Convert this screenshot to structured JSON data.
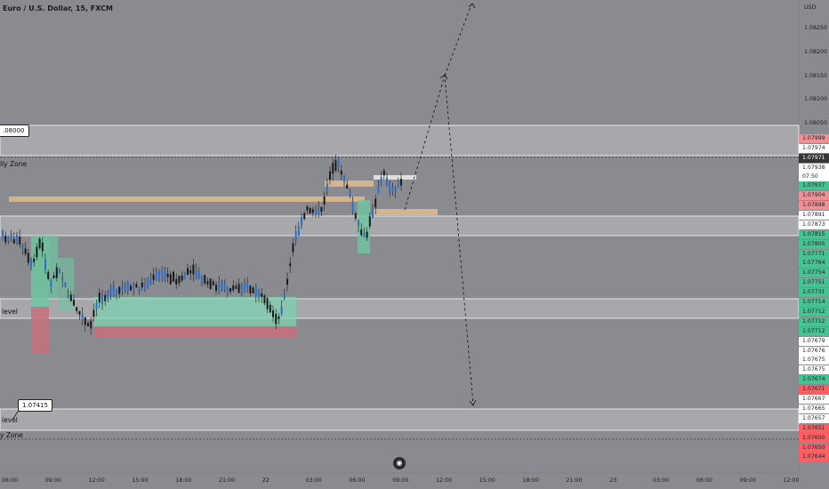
{
  "header": {
    "symbol_title": "Euro / U.S. Dollar, 15, FXCM"
  },
  "price_axis": {
    "currency": "USD",
    "ticks": [
      "1.08250",
      "1.08200",
      "1.08150",
      "1.08100",
      "1.08050"
    ],
    "tags": [
      {
        "text": "1.07999",
        "bg": "#f08f96",
        "fg": "#222"
      },
      {
        "text": "1.07974",
        "bg": "#ffffff",
        "fg": "#222"
      },
      {
        "text": "1.07971",
        "bg": "#363636",
        "fg": "#fff"
      },
      {
        "text": "1.07938",
        "bg": "#ffffff",
        "fg": "#222",
        "sub": "07:50"
      },
      {
        "text": "1.07937",
        "bg": "#47c293",
        "fg": "#222"
      },
      {
        "text": "1.07904",
        "bg": "#f08f96",
        "fg": "#222"
      },
      {
        "text": "1.07898",
        "bg": "#f08f96",
        "fg": "#222"
      },
      {
        "text": "1.07891",
        "bg": "#ffffff",
        "fg": "#222"
      },
      {
        "text": "1.07873",
        "bg": "#ffffff",
        "fg": "#222"
      },
      {
        "text": "1.07815",
        "bg": "#47c293",
        "fg": "#222"
      },
      {
        "text": "1.07805",
        "bg": "#47c293",
        "fg": "#222"
      },
      {
        "text": "1.07771",
        "bg": "#47c293",
        "fg": "#222"
      },
      {
        "text": "1.07764",
        "bg": "#47c293",
        "fg": "#222"
      },
      {
        "text": "1.07754",
        "bg": "#47c293",
        "fg": "#222"
      },
      {
        "text": "1.07751",
        "bg": "#47c293",
        "fg": "#222"
      },
      {
        "text": "1.07731",
        "bg": "#47c293",
        "fg": "#222"
      },
      {
        "text": "1.07714",
        "bg": "#47c293",
        "fg": "#222"
      },
      {
        "text": "1.07712",
        "bg": "#47c293",
        "fg": "#222"
      },
      {
        "text": "1.07712",
        "bg": "#47c293",
        "fg": "#222"
      },
      {
        "text": "1.07712",
        "bg": "#47c293",
        "fg": "#222"
      },
      {
        "text": "1.07679",
        "bg": "#ffffff",
        "fg": "#222"
      },
      {
        "text": "1.07676",
        "bg": "#ffffff",
        "fg": "#222"
      },
      {
        "text": "1.07675",
        "bg": "#ffffff",
        "fg": "#222"
      },
      {
        "text": "1.07675",
        "bg": "#ffffff",
        "fg": "#222"
      },
      {
        "text": "1.07674",
        "bg": "#47c293",
        "fg": "#222"
      },
      {
        "text": "1.07671",
        "bg": "#ff5e63",
        "fg": "#222"
      },
      {
        "text": "1.07667",
        "bg": "#ffffff",
        "fg": "#222"
      },
      {
        "text": "1.07665",
        "bg": "#ffffff",
        "fg": "#222"
      },
      {
        "text": "1.07657",
        "bg": "#ffffff",
        "fg": "#222"
      },
      {
        "text": "1.07651",
        "bg": "#ff5e63",
        "fg": "#222"
      },
      {
        "text": "1.07650",
        "bg": "#ff5e63",
        "fg": "#222"
      },
      {
        "text": "1.07650",
        "bg": "#ff5e63",
        "fg": "#222"
      },
      {
        "text": "1.07644",
        "bg": "#ff5e63",
        "fg": "#222"
      }
    ]
  },
  "time_axis": {
    "ticks": [
      "06:00",
      "09:00",
      "12:00",
      "15:00",
      "18:00",
      "21:00",
      "22",
      "03:00",
      "06:00",
      "09:00",
      "12:00",
      "15:00",
      "18:00",
      "21:00",
      "23",
      "03:00",
      "06:00",
      "09:00",
      "12:00"
    ]
  },
  "drawings": {
    "callout_top": ".08000",
    "callout_bottom": "1.07415",
    "zone_labels": [
      "lly Zone",
      "level",
      "level",
      "y Zone"
    ]
  },
  "colors": {
    "background": "#8a8b90",
    "bull": "#2f6fc6",
    "bear": "#1a1a1a",
    "zone": "#a5a6aa"
  }
}
